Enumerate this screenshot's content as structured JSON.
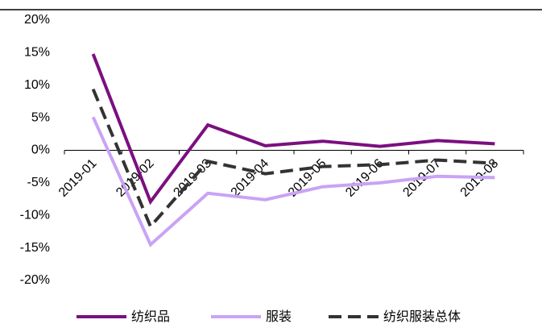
{
  "chart_data": {
    "type": "line",
    "categories": [
      "2019-01",
      "2019-02",
      "2019-03",
      "2019-04",
      "2019-05",
      "2019-06",
      "2019-07",
      "2019-08"
    ],
    "series": [
      {
        "name": "纺织品",
        "color": "#7b0f80",
        "dash": false,
        "values": [
          14.8,
          -7.9,
          3.9,
          0.7,
          1.4,
          0.6,
          1.5,
          1.0
        ]
      },
      {
        "name": "服装",
        "color": "#c9a3f5",
        "dash": false,
        "values": [
          5.1,
          -14.5,
          -6.6,
          -7.6,
          -5.6,
          -5.0,
          -4.0,
          -4.2
        ]
      },
      {
        "name": "纺织服装总体",
        "color": "#333333",
        "dash": true,
        "values": [
          9.4,
          -11.7,
          -1.7,
          -3.6,
          -2.5,
          -2.2,
          -1.5,
          -2.0
        ]
      }
    ],
    "ylim": [
      -20,
      20
    ],
    "yticks": [
      {
        "value": -20,
        "label": "-20%"
      },
      {
        "value": -15,
        "label": "-15%"
      },
      {
        "value": -10,
        "label": "-10%"
      },
      {
        "value": -5,
        "label": "-5%"
      },
      {
        "value": 0,
        "label": "0%"
      },
      {
        "value": 5,
        "label": "5%"
      },
      {
        "value": 10,
        "label": "10%"
      },
      {
        "value": 15,
        "label": "15%"
      },
      {
        "value": 20,
        "label": "20%"
      }
    ],
    "legend": "bottom"
  }
}
